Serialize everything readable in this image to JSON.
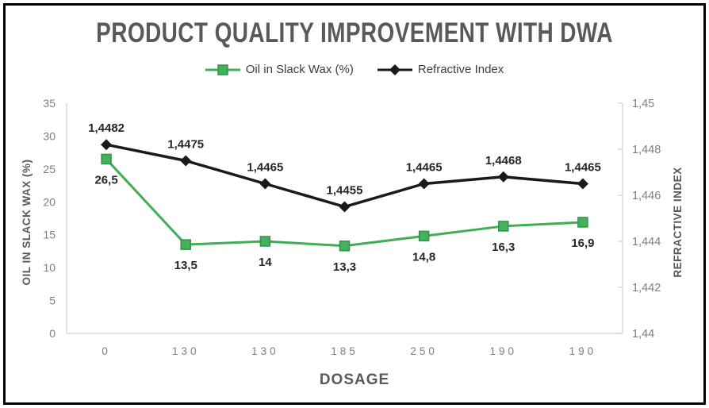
{
  "chart_data": {
    "type": "line",
    "title": "PRODUCT QUALITY IMPROVEMENT WITH DWA",
    "xlabel": "DOSAGE",
    "categories": [
      "0",
      "130",
      "130",
      "185",
      "250",
      "190",
      "190"
    ],
    "series": [
      {
        "name": "Oil in Slack Wax (%)",
        "axis": "left",
        "marker": "square",
        "color": "#41ad57",
        "marker_fill": "#45b15c",
        "marker_border": "#2f9447",
        "line_width": 3,
        "values": [
          26.5,
          13.5,
          14,
          13.3,
          14.8,
          16.3,
          16.9
        ],
        "labels": [
          "26,5",
          "13,5",
          "14",
          "13,3",
          "14,8",
          "16,3",
          "16,9"
        ]
      },
      {
        "name": "Refractive Index",
        "axis": "right",
        "marker": "diamond",
        "color": "#1a1a1a",
        "marker_fill": "#1a1a1a",
        "marker_border": "#1a1a1a",
        "line_width": 3.5,
        "values": [
          1.4482,
          1.4475,
          1.4465,
          1.4455,
          1.4465,
          1.4468,
          1.4465
        ],
        "labels": [
          "1,4482",
          "1,4475",
          "1,4465",
          "1,4455",
          "1,4465",
          "1,4468",
          "1,4465"
        ]
      }
    ],
    "left_axis": {
      "title": "OIL IN SLACK WAX (%)",
      "min": 0,
      "max": 35,
      "step": 5,
      "tick_labels": [
        "0",
        "5",
        "10",
        "15",
        "20",
        "25",
        "30",
        "35"
      ]
    },
    "right_axis": {
      "title": "REFRACTIVE INDEX",
      "min": 1.44,
      "max": 1.45,
      "step": 0.002,
      "tick_labels": [
        "1,44",
        "1,442",
        "1,444",
        "1,446",
        "1,448",
        "1,45"
      ]
    },
    "grid": false,
    "legend_position": "top"
  },
  "colors": {
    "title": "#595959",
    "axis_title": "#595959",
    "tick_label": "#7f7f7f",
    "data_label": "#262626",
    "axis_line": "#d9d9d9",
    "frame_border": "#000000",
    "background": "#ffffff"
  }
}
